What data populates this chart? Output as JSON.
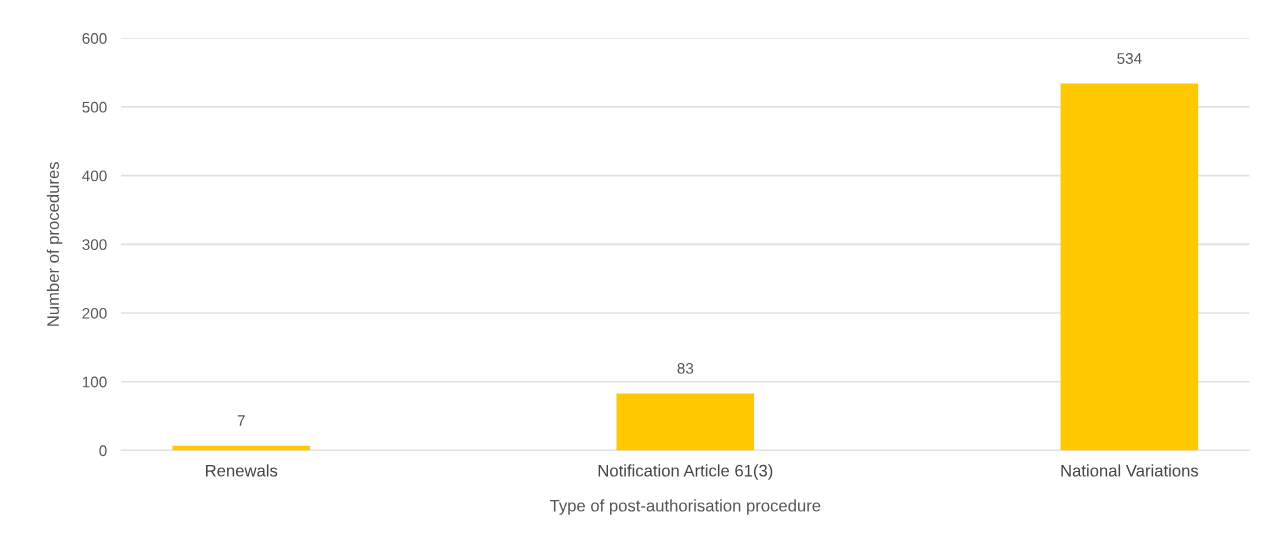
{
  "chart_data": {
    "type": "bar",
    "xlabel": "Type of post-authorisation procedure",
    "ylabel": "Number of procedures",
    "categories": [
      "Renewals",
      "Notification Article 61(3)",
      "National Variations"
    ],
    "values": [
      7,
      83,
      534
    ],
    "color": "#ffc800",
    "ylim": [
      0,
      600
    ],
    "yticks": [
      0,
      100,
      200,
      300,
      400,
      500,
      600
    ],
    "grid": "y",
    "data_labels": true
  }
}
